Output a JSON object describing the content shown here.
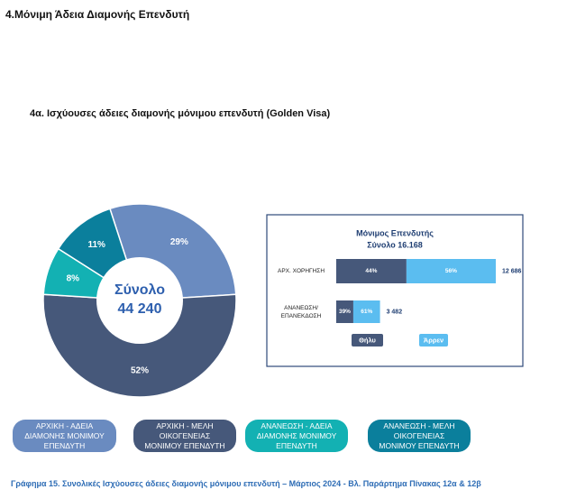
{
  "header": {
    "title": "4.Μόνιμη Άδεια Διαμονής  Επενδυτή",
    "subtitle": "4α. Ισχύουσες άδειες διαμονής μόνιμου επενδυτή (Golden Visa)"
  },
  "chart_data": [
    {
      "type": "pie",
      "center_label": "Σύνολο",
      "center_value": "44 240",
      "categories": [
        "ΑΡΧΙΚΗ - ΑΔΕΙΑ ΔΙΑΜΟΝΗΣ ΜΟΝΙΜΟΥ ΕΠΕΝΔΥΤΗ",
        "ΑΡΧΙΚΗ - ΜΕΛΗ ΟΙΚΟΓΕΝΕΙΑΣ ΜΟΝΙΜΟΥ ΕΠΕΝΔΥΤΗ",
        "ΑΝΑΝΕΩΣΗ - ΑΔΕΙΑ ΔΙΑΜΟΝΗΣ ΜΟΝΙΜΟΥ ΕΠΕΝΔΥΤΗ",
        "ΑΝΑΝΕΩΣΗ - ΜΕΛΗ ΟΙΚΟΓΕΝΕΙΑΣ ΜΟΝΙΜΟΥ ΕΠΕΝΔΥΤΗ"
      ],
      "values": [
        29,
        52,
        8,
        11
      ],
      "value_labels": [
        "29%",
        "52%",
        "8%",
        "11%"
      ],
      "colors": [
        "#6a8bc0",
        "#46587a",
        "#13b1b3",
        "#0b7f9c"
      ]
    },
    {
      "type": "bar",
      "title": "Μόνιμος Επενδυτής",
      "subtitle": "Σύνολο 16.168",
      "categories": [
        "ΑΡΧ. ΧΟΡΗΓΗΣΗ",
        "ΑΝΑΝΕΩΣΗ/ ΕΠΑΝΕΚΔΟΣΗ"
      ],
      "series": [
        {
          "name": "Θήλυ",
          "color": "#46587a",
          "values": [
            44,
            39
          ],
          "value_labels": [
            "44%",
            "39%"
          ]
        },
        {
          "name": "Άρρεν",
          "color": "#5bbdf0",
          "values": [
            56,
            61
          ],
          "value_labels": [
            "56%",
            "61%"
          ]
        }
      ],
      "totals": [
        12686,
        3482
      ],
      "total_labels": [
        "12 686",
        "3 482"
      ]
    }
  ],
  "caption": "Γράφημα 15. Συνολικές Ισχύουσες άδειες διαμονής μόνιμου επενδυτή – Μάρτιος 2024 - Βλ. Παράρτημα  Πίνακας 12α & 12β"
}
